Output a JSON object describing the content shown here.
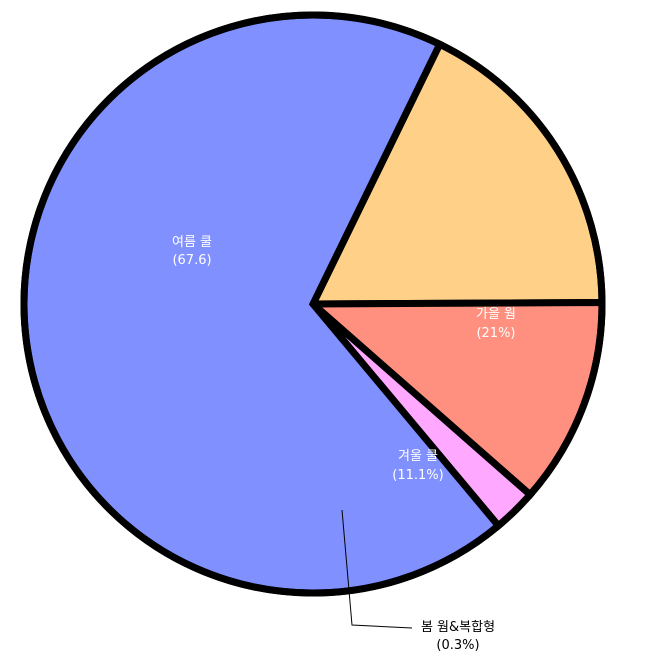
{
  "chart_data": {
    "type": "pie",
    "slices": [
      {
        "name": "여름 쿨",
        "value_label": "(67.6)",
        "value": 67.6,
        "color": "#8090FF"
      },
      {
        "name": "가을 웜",
        "value_label": "(21%)",
        "value": 21,
        "color": "#FFD088"
      },
      {
        "name": "겨울 쿨",
        "value_label": "(11.1%)",
        "value": 11.1,
        "color": "#FF9080"
      },
      {
        "name": "봄 웜&복합형",
        "value_label": "(0.3%)",
        "value": 0.3,
        "color": "#FFA8FF"
      }
    ],
    "legend": "none",
    "outline_color": "#000000"
  }
}
